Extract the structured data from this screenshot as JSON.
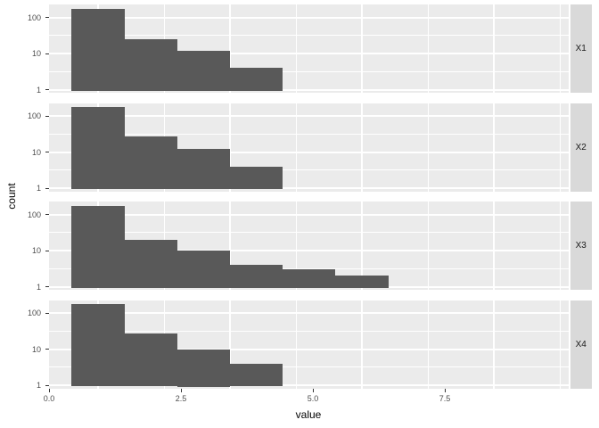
{
  "chart_data": {
    "type": "bar",
    "subtype": "faceted-histogram",
    "title": "",
    "xlabel": "value",
    "ylabel": "count",
    "y_scale": "log10",
    "x_ticks": [
      0.0,
      2.5,
      5.0,
      7.5
    ],
    "x_tick_labels": [
      "0.0",
      "2.5",
      "5.0",
      "7.5"
    ],
    "x_minor_ticks": [
      1.25,
      3.75,
      6.25,
      8.75
    ],
    "x_range": [
      -0.93,
      8.92
    ],
    "y_tick_values": [
      1,
      10,
      100
    ],
    "y_tick_labels": [
      "1",
      "10",
      "100"
    ],
    "y_minor_values": [
      3.162,
      31.62
    ],
    "y_max": 240,
    "bin_width": 1,
    "grid": true,
    "legend": "none",
    "facets": [
      {
        "label": "X1",
        "bin_centers": [
          0,
          1,
          2,
          3
        ],
        "counts": [
          175,
          25,
          12,
          4
        ]
      },
      {
        "label": "X2",
        "bin_centers": [
          0,
          1,
          2,
          3
        ],
        "counts": [
          180,
          27,
          12,
          4
        ]
      },
      {
        "label": "X3",
        "bin_centers": [
          0,
          1,
          2,
          3,
          4,
          5
        ],
        "counts": [
          170,
          20,
          10,
          4,
          3,
          2
        ]
      },
      {
        "label": "X4",
        "bin_centers": [
          0,
          1,
          2,
          3
        ],
        "counts": [
          180,
          27,
          10,
          4
        ]
      }
    ],
    "colors": {
      "bar": "#595959",
      "panel_bg": "#ebebeb",
      "strip_bg": "#d9d9d9",
      "grid": "#ffffff",
      "tick_text": "#4d4d4d",
      "strip_text": "#1a1a1a",
      "axis_title": "#000000",
      "background": "#ffffff"
    }
  }
}
